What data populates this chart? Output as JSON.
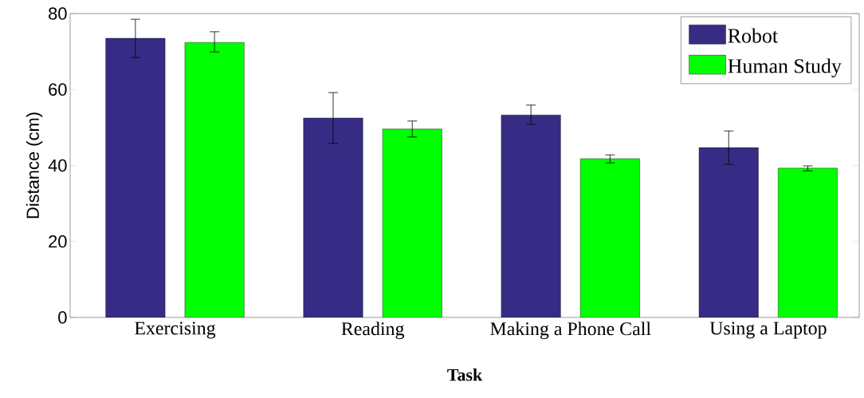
{
  "chart_data": {
    "type": "bar",
    "xlabel": "Task",
    "ylabel": "Distance (cm)",
    "categories": [
      "Exercising",
      "Reading",
      "Making a Phone Call",
      "Using a Laptop"
    ],
    "series": [
      {
        "name": "Robot",
        "color": "#372c85",
        "values": [
          73.5,
          52.5,
          53.3,
          44.7
        ],
        "errors": [
          [
            68.4,
            78.5
          ],
          [
            45.8,
            59.2
          ],
          [
            50.8,
            55.9
          ],
          [
            40.3,
            49.1
          ]
        ]
      },
      {
        "name": "Human Study",
        "color": "#00ff00",
        "values": [
          72.4,
          49.6,
          41.8,
          39.3
        ],
        "errors": [
          [
            69.9,
            75.2
          ],
          [
            47.5,
            51.7
          ],
          [
            40.7,
            42.8
          ],
          [
            38.6,
            39.9
          ]
        ]
      }
    ],
    "ylim": [
      0,
      80
    ],
    "yticks": [
      0,
      20,
      40,
      60,
      80
    ],
    "grid": false,
    "legend": "top right"
  }
}
